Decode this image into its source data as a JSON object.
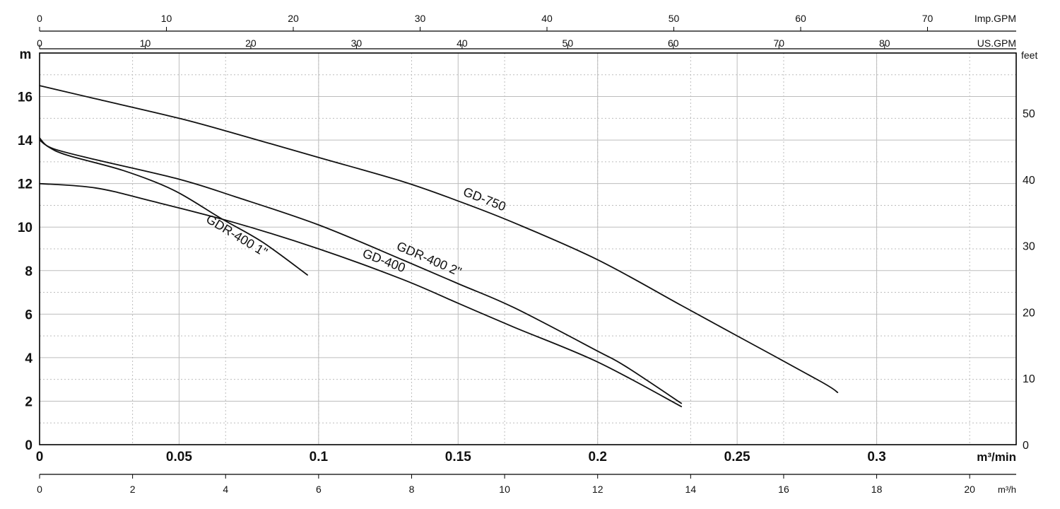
{
  "chart_data": {
    "type": "line",
    "axes": {
      "x_main": {
        "unit_label": "m³/min",
        "range": [
          0,
          0.35
        ],
        "ticks": [
          "0",
          "0.05",
          "0.1",
          "0.15",
          "0.2",
          "0.25",
          "0.3"
        ]
      },
      "x_m3h": {
        "unit_label": "m³/h",
        "range": [
          0,
          21
        ],
        "ticks": [
          "0",
          "2",
          "4",
          "6",
          "8",
          "10",
          "12",
          "14",
          "16",
          "18",
          "20"
        ]
      },
      "x_usgpm": {
        "unit_label": "US.GPM",
        "range": [
          0,
          92.46
        ],
        "ticks": [
          "0",
          "10",
          "20",
          "30",
          "40",
          "50",
          "60",
          "70",
          "80"
        ]
      },
      "x_impgpm": {
        "unit_label": "Imp.GPM",
        "range": [
          0,
          76.99
        ],
        "ticks": [
          "0",
          "10",
          "20",
          "30",
          "40",
          "50",
          "60",
          "70"
        ]
      },
      "y_left": {
        "unit_label": "m",
        "range": [
          0,
          18
        ],
        "ticks": [
          "0",
          "2",
          "4",
          "6",
          "8",
          "10",
          "12",
          "14",
          "16"
        ]
      },
      "y_right": {
        "unit_label": "feet",
        "range": [
          0,
          59.06
        ],
        "ticks": [
          "0",
          "10",
          "20",
          "30",
          "40",
          "50"
        ]
      }
    },
    "grid": true,
    "series": [
      {
        "name": "GD-750",
        "points": [
          [
            0,
            16.5
          ],
          [
            0.02,
            15.9
          ],
          [
            0.05,
            15.0
          ],
          [
            0.07,
            14.3
          ],
          [
            0.1,
            13.2
          ],
          [
            0.13,
            12.1
          ],
          [
            0.15,
            11.2
          ],
          [
            0.17,
            10.2
          ],
          [
            0.2,
            8.5
          ],
          [
            0.23,
            6.4
          ],
          [
            0.25,
            5.0
          ],
          [
            0.28,
            2.9
          ],
          [
            0.286,
            2.4
          ]
        ]
      },
      {
        "name": "GDR-400 2\"",
        "points": [
          [
            0,
            14.0
          ],
          [
            0.005,
            13.6
          ],
          [
            0.02,
            13.1
          ],
          [
            0.05,
            12.2
          ],
          [
            0.07,
            11.4
          ],
          [
            0.1,
            10.1
          ],
          [
            0.13,
            8.5
          ],
          [
            0.15,
            7.4
          ],
          [
            0.17,
            6.3
          ],
          [
            0.2,
            4.3
          ],
          [
            0.21,
            3.6
          ],
          [
            0.23,
            1.9
          ]
        ]
      },
      {
        "name": "GD-400",
        "points": [
          [
            0,
            12.0
          ],
          [
            0.02,
            11.8
          ],
          [
            0.04,
            11.2
          ],
          [
            0.07,
            10.2
          ],
          [
            0.1,
            9.0
          ],
          [
            0.13,
            7.6
          ],
          [
            0.15,
            6.5
          ],
          [
            0.17,
            5.4
          ],
          [
            0.2,
            3.8
          ],
          [
            0.23,
            1.75
          ]
        ]
      },
      {
        "name": "GDR-400 1\"",
        "points": [
          [
            0,
            14.1
          ],
          [
            0.003,
            13.7
          ],
          [
            0.01,
            13.3
          ],
          [
            0.03,
            12.6
          ],
          [
            0.048,
            11.7
          ],
          [
            0.065,
            10.4
          ],
          [
            0.08,
            9.3
          ],
          [
            0.096,
            7.8
          ]
        ]
      }
    ]
  },
  "colors": {
    "line": "#111111",
    "grid": "#bdbdbd",
    "frame": "#000000"
  }
}
